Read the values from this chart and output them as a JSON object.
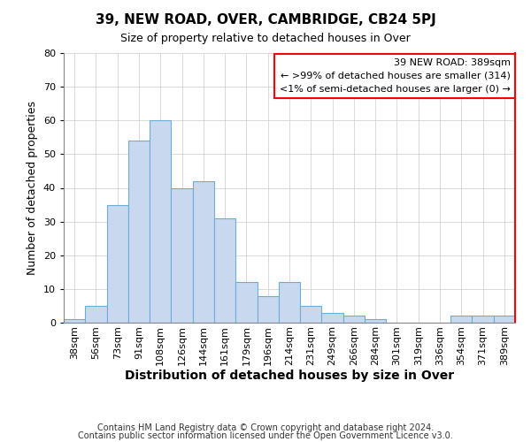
{
  "title": "39, NEW ROAD, OVER, CAMBRIDGE, CB24 5PJ",
  "subtitle": "Size of property relative to detached houses in Over",
  "xlabel": "Distribution of detached houses by size in Over",
  "ylabel": "Number of detached properties",
  "categories": [
    "38sqm",
    "56sqm",
    "73sqm",
    "91sqm",
    "108sqm",
    "126sqm",
    "144sqm",
    "161sqm",
    "179sqm",
    "196sqm",
    "214sqm",
    "231sqm",
    "249sqm",
    "266sqm",
    "284sqm",
    "301sqm",
    "319sqm",
    "336sqm",
    "354sqm",
    "371sqm",
    "389sqm"
  ],
  "values": [
    1,
    5,
    35,
    54,
    60,
    40,
    42,
    31,
    12,
    8,
    12,
    5,
    3,
    2,
    1,
    0,
    0,
    0,
    2,
    2,
    2
  ],
  "bar_color": "#c8d9ef",
  "bar_edge_color": "#6aaed6",
  "ylim": [
    0,
    80
  ],
  "yticks": [
    0,
    10,
    20,
    30,
    40,
    50,
    60,
    70,
    80
  ],
  "legend_title": "39 NEW ROAD: 389sqm",
  "legend_line1": "← >99% of detached houses are smaller (314)",
  "legend_line2": "<1% of semi-detached houses are larger (0) →",
  "footer_line1": "Contains HM Land Registry data © Crown copyright and database right 2024.",
  "footer_line2": "Contains public sector information licensed under the Open Government Licence v3.0.",
  "background_color": "#ffffff",
  "grid_color": "#cccccc",
  "title_fontsize": 11,
  "subtitle_fontsize": 9,
  "xlabel_fontsize": 10,
  "ylabel_fontsize": 9,
  "tick_fontsize": 8,
  "legend_fontsize": 8,
  "footer_fontsize": 7
}
